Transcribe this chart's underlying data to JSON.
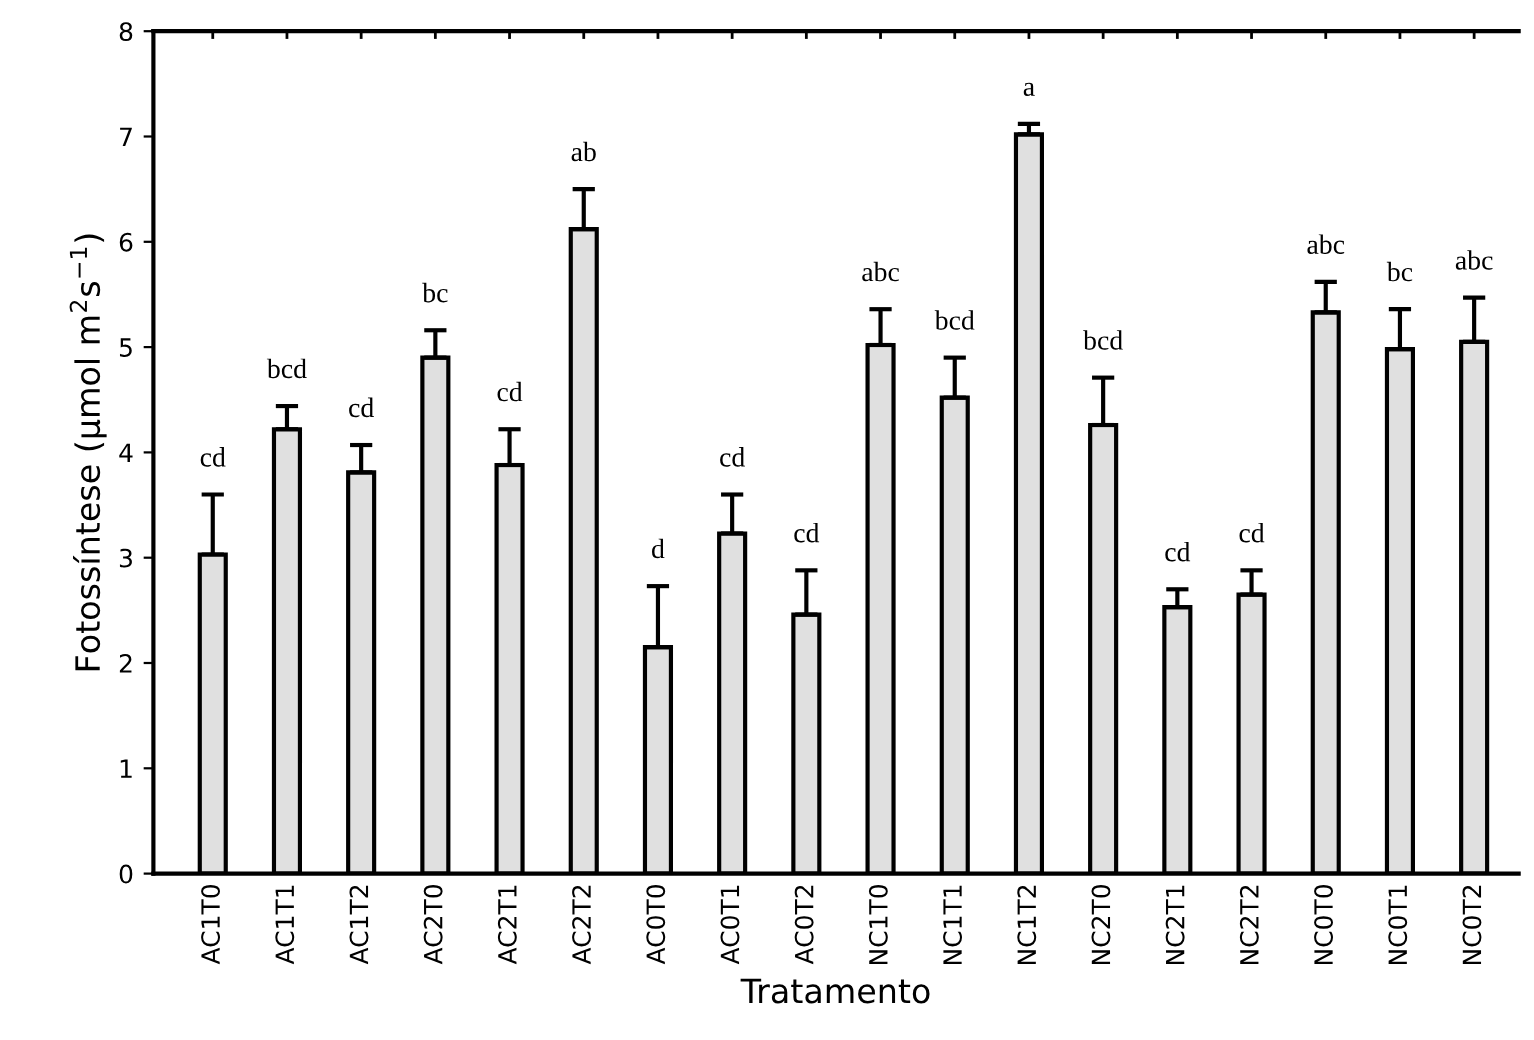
{
  "chart_data": {
    "type": "bar",
    "xlabel": "Tratamento",
    "ylabel": "Fotossíntese (µmol m$^{2}$s$^{−1}$)",
    "categories": [
      "AC1T0",
      "AC1T1",
      "AC1T2",
      "AC2T0",
      "AC2T1",
      "AC2T2",
      "AC0T0",
      "AC0T1",
      "AC0T2",
      "NC1T0",
      "NC1T1",
      "NC1T2",
      "NC2T0",
      "NC2T1",
      "NC2T2",
      "NC0T0",
      "NC0T1",
      "NC0T2"
    ],
    "values": [
      3.03,
      4.22,
      3.81,
      4.9,
      3.88,
      6.12,
      2.15,
      3.23,
      2.46,
      5.02,
      4.52,
      7.02,
      4.26,
      2.53,
      2.65,
      5.33,
      4.98,
      5.05
    ],
    "errors": [
      [
        3.03,
        3.6
      ],
      [
        4.22,
        4.44
      ],
      [
        3.81,
        4.07
      ],
      [
        4.9,
        5.16
      ],
      [
        3.88,
        4.22
      ],
      [
        6.12,
        6.5
      ],
      [
        2.15,
        2.73
      ],
      [
        3.23,
        3.6
      ],
      [
        2.46,
        2.88
      ],
      [
        5.02,
        5.36
      ],
      [
        4.52,
        4.9
      ],
      [
        7.02,
        7.12
      ],
      [
        4.26,
        4.71
      ],
      [
        2.53,
        2.7
      ],
      [
        2.65,
        2.88
      ],
      [
        5.33,
        5.62
      ],
      [
        4.98,
        5.36
      ],
      [
        5.05,
        5.47
      ]
    ],
    "color": "#e0e0e0",
    "ylim": [
      0,
      8
    ],
    "yticks": [
      0,
      1,
      2,
      3,
      4,
      5,
      6,
      7,
      8
    ],
    "grid": false,
    "annotations": [
      "cd",
      "bcd",
      "cd",
      "bc",
      "cd",
      "ab",
      "d",
      "cd",
      "cd",
      "abc",
      "bcd",
      "a",
      "bcd",
      "cd",
      "cd",
      "abc",
      "bc",
      "abc"
    ]
  }
}
